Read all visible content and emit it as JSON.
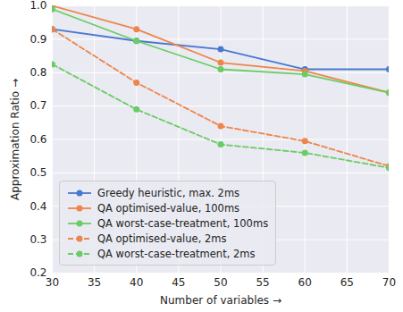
{
  "chart_data": {
    "type": "line",
    "x_label": "Number of variables",
    "y_label": "Approximation Ratio",
    "x": [
      30,
      40,
      50,
      60,
      70
    ],
    "series": [
      {
        "name": "Greedy heuristic, max. 2ms",
        "color": "#4878d0",
        "line_style": "solid",
        "marker": "o",
        "values": [
          0.93,
          0.895,
          0.87,
          0.81,
          0.81
        ]
      },
      {
        "name": "QA optimised-value, 100ms",
        "color": "#ee854a",
        "line_style": "solid",
        "marker": "o",
        "values": [
          1.0,
          0.93,
          0.83,
          0.805,
          0.74
        ]
      },
      {
        "name": "QA worst-case-treatment, 100ms",
        "color": "#6acc64",
        "line_style": "solid",
        "marker": "o",
        "values": [
          0.99,
          0.895,
          0.81,
          0.795,
          0.74
        ]
      },
      {
        "name": "QA optimised-value, 2ms",
        "color": "#ee854a",
        "line_style": "dashed",
        "marker": "o",
        "values": [
          0.93,
          0.77,
          0.64,
          0.595,
          0.52
        ]
      },
      {
        "name": "QA worst-case-treatment, 2ms",
        "color": "#6acc64",
        "line_style": "dashed",
        "marker": "o",
        "values": [
          0.825,
          0.69,
          0.585,
          0.56,
          0.515
        ]
      }
    ],
    "xlim": [
      30,
      70
    ],
    "xticks": [
      30,
      35,
      40,
      45,
      50,
      55,
      60,
      65,
      70
    ],
    "ylim": [
      0.2,
      1.0
    ],
    "yticks": [
      0.2,
      0.3,
      0.4,
      0.5,
      0.6,
      0.7,
      0.8,
      0.9,
      {
        "value": 1.0,
        "label": "1.0"
      }
    ],
    "grid": true,
    "legend": "lower left"
  }
}
